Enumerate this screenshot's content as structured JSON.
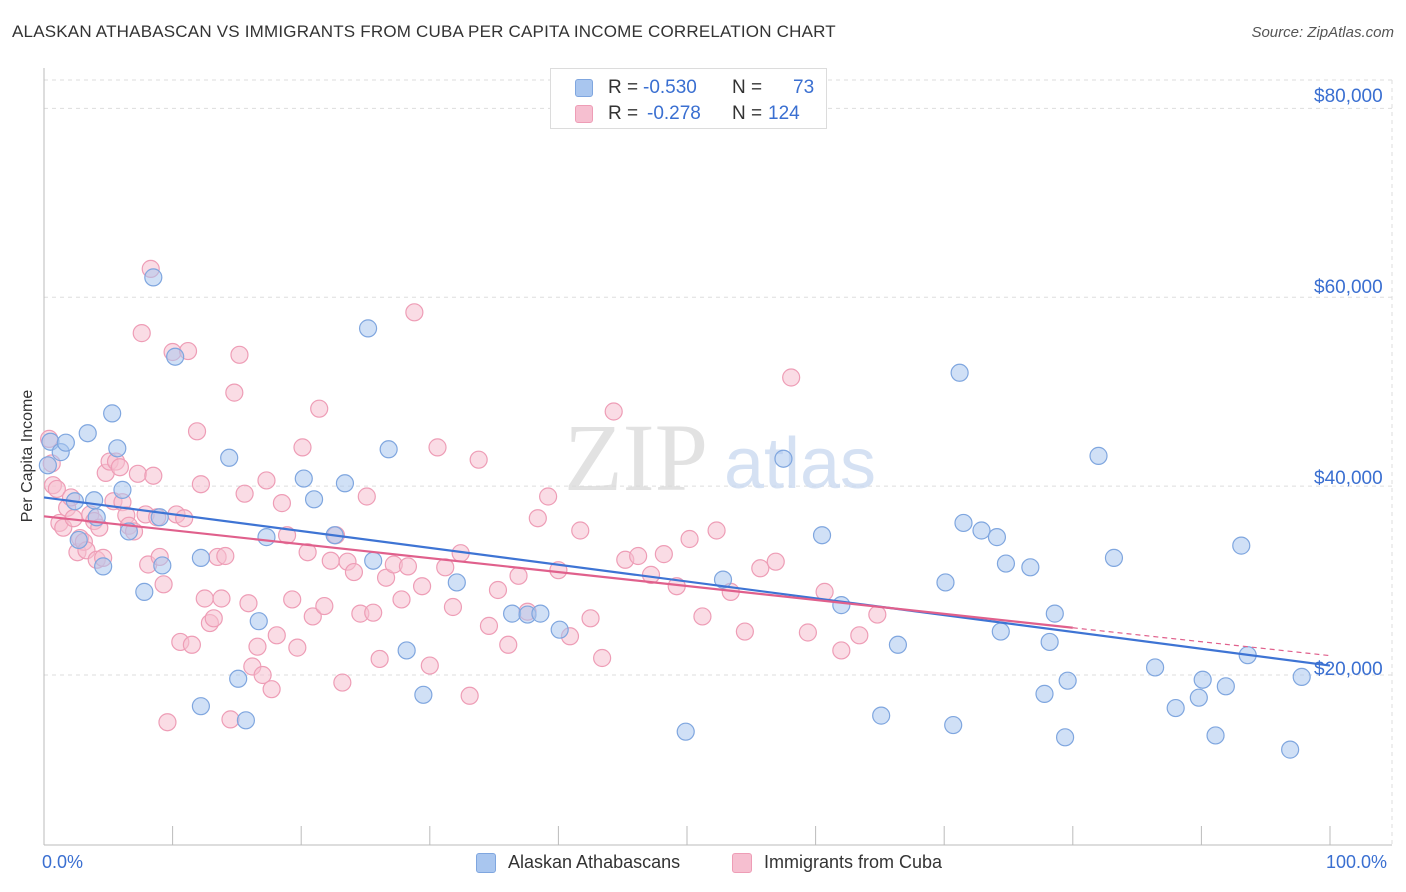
{
  "title": "ALASKAN ATHABASCAN VS IMMIGRANTS FROM CUBA PER CAPITA INCOME CORRELATION CHART",
  "source": "Source: ZipAtlas.com",
  "watermark": {
    "zip": "ZIP",
    "atlas": "atlas"
  },
  "colors": {
    "blue_fill": "#a9c6ef",
    "blue_stroke": "#7fa6df",
    "blue_line": "#3e74d4",
    "pink_fill": "#f6bfd0",
    "pink_stroke": "#ee9db6",
    "pink_line": "#e0608c",
    "grid": "#dddddd",
    "axis_text": "#3a6fd1"
  },
  "legend": {
    "rows": [
      {
        "r_label": "R =",
        "r_value": "-0.530",
        "n_label": "N =",
        "n_value": "73"
      },
      {
        "r_label": "R =",
        "r_value": "-0.278",
        "n_label": "N =",
        "n_value": "124"
      }
    ]
  },
  "bottom_legend": [
    "Alaskan Athabascans",
    "Immigrants from Cuba"
  ],
  "x_axis": {
    "min_label": "0.0%",
    "max_label": "100.0%"
  },
  "y_axis": {
    "label": "Per Capita Income",
    "ticks": [
      "$20,000",
      "$40,000",
      "$60,000",
      "$80,000"
    ]
  },
  "chart_data": {
    "type": "scatter",
    "xlabel": "",
    "ylabel": "Per Capita Income",
    "xlim": [
      0,
      100
    ],
    "ylim": [
      2000,
      83000
    ],
    "yticks": [
      20000,
      40000,
      60000,
      80000
    ],
    "grid": true,
    "legend_position": "top-center",
    "series": [
      {
        "name": "Alaskan Athabascans",
        "r": -0.53,
        "n": 73,
        "trend": {
          "x": [
            0,
            100
          ],
          "y": [
            38800,
            21000
          ]
        },
        "points": [
          [
            0.3,
            42200
          ],
          [
            0.5,
            44700
          ],
          [
            1.3,
            43600
          ],
          [
            1.7,
            44600
          ],
          [
            2.4,
            38400
          ],
          [
            2.7,
            34300
          ],
          [
            3.4,
            45600
          ],
          [
            3.9,
            38500
          ],
          [
            4.1,
            36700
          ],
          [
            4.6,
            31500
          ],
          [
            5.3,
            47700
          ],
          [
            5.7,
            44000
          ],
          [
            6.1,
            39600
          ],
          [
            6.6,
            35200
          ],
          [
            7.8,
            28800
          ],
          [
            8.5,
            62100
          ],
          [
            9.0,
            36700
          ],
          [
            9.2,
            31600
          ],
          [
            10.2,
            53700
          ],
          [
            12.2,
            16700
          ],
          [
            12.2,
            32400
          ],
          [
            14.4,
            43000
          ],
          [
            15.1,
            19600
          ],
          [
            15.7,
            15200
          ],
          [
            16.7,
            25700
          ],
          [
            17.3,
            34600
          ],
          [
            20.2,
            40800
          ],
          [
            21.0,
            38600
          ],
          [
            22.6,
            34800
          ],
          [
            23.4,
            40300
          ],
          [
            25.2,
            56700
          ],
          [
            25.6,
            32100
          ],
          [
            26.8,
            43900
          ],
          [
            28.2,
            22600
          ],
          [
            29.5,
            17900
          ],
          [
            32.1,
            29800
          ],
          [
            36.4,
            26500
          ],
          [
            37.6,
            26400
          ],
          [
            38.6,
            26500
          ],
          [
            40.1,
            24800
          ],
          [
            49.9,
            14000
          ],
          [
            52.8,
            30100
          ],
          [
            57.5,
            42900
          ],
          [
            60.5,
            34800
          ],
          [
            62.0,
            27400
          ],
          [
            65.1,
            15700
          ],
          [
            66.4,
            23200
          ],
          [
            70.1,
            29800
          ],
          [
            70.7,
            14700
          ],
          [
            71.2,
            52000
          ],
          [
            71.5,
            36100
          ],
          [
            72.9,
            35300
          ],
          [
            74.1,
            34600
          ],
          [
            74.4,
            24600
          ],
          [
            74.8,
            31800
          ],
          [
            76.7,
            31400
          ],
          [
            77.8,
            18000
          ],
          [
            78.2,
            23500
          ],
          [
            78.6,
            26500
          ],
          [
            79.4,
            13400
          ],
          [
            79.6,
            19400
          ],
          [
            82.0,
            43200
          ],
          [
            83.2,
            32400
          ],
          [
            86.4,
            20800
          ],
          [
            88.0,
            16500
          ],
          [
            89.8,
            17600
          ],
          [
            90.1,
            19500
          ],
          [
            91.1,
            13600
          ],
          [
            91.9,
            18800
          ],
          [
            93.1,
            33700
          ],
          [
            93.6,
            22100
          ],
          [
            96.9,
            12100
          ],
          [
            97.8,
            19800
          ]
        ]
      },
      {
        "name": "Immigrants from Cuba",
        "r": -0.278,
        "n": 124,
        "trend": {
          "x": [
            0,
            80
          ],
          "y": [
            36800,
            25000
          ]
        },
        "points": [
          [
            0.4,
            45000
          ],
          [
            0.6,
            42400
          ],
          [
            0.7,
            40100
          ],
          [
            1.0,
            39700
          ],
          [
            1.2,
            36100
          ],
          [
            1.5,
            35600
          ],
          [
            1.8,
            37700
          ],
          [
            2.1,
            38800
          ],
          [
            2.3,
            36600
          ],
          [
            2.6,
            33000
          ],
          [
            2.8,
            34500
          ],
          [
            3.1,
            34100
          ],
          [
            3.3,
            33200
          ],
          [
            3.6,
            37000
          ],
          [
            3.9,
            36300
          ],
          [
            4.1,
            32200
          ],
          [
            4.3,
            35600
          ],
          [
            4.6,
            32400
          ],
          [
            4.8,
            41400
          ],
          [
            5.1,
            42600
          ],
          [
            5.4,
            38400
          ],
          [
            5.6,
            42600
          ],
          [
            5.9,
            42000
          ],
          [
            6.1,
            38300
          ],
          [
            6.4,
            36900
          ],
          [
            6.6,
            35800
          ],
          [
            7.0,
            35200
          ],
          [
            7.3,
            41300
          ],
          [
            7.6,
            56200
          ],
          [
            7.9,
            37000
          ],
          [
            8.1,
            31700
          ],
          [
            8.3,
            63000
          ],
          [
            8.5,
            41100
          ],
          [
            8.8,
            36700
          ],
          [
            9.0,
            32500
          ],
          [
            9.3,
            29600
          ],
          [
            9.6,
            15000
          ],
          [
            10.0,
            54200
          ],
          [
            10.3,
            37000
          ],
          [
            10.6,
            23500
          ],
          [
            10.9,
            36600
          ],
          [
            11.2,
            54300
          ],
          [
            11.5,
            23200
          ],
          [
            11.9,
            45800
          ],
          [
            12.2,
            40200
          ],
          [
            12.5,
            28100
          ],
          [
            12.9,
            25500
          ],
          [
            13.2,
            26000
          ],
          [
            13.5,
            32500
          ],
          [
            13.8,
            28100
          ],
          [
            14.1,
            32600
          ],
          [
            14.5,
            15300
          ],
          [
            14.8,
            49900
          ],
          [
            15.2,
            53900
          ],
          [
            15.6,
            39200
          ],
          [
            15.9,
            27600
          ],
          [
            16.2,
            20900
          ],
          [
            16.6,
            23000
          ],
          [
            17.0,
            20000
          ],
          [
            17.3,
            40600
          ],
          [
            17.7,
            18500
          ],
          [
            18.1,
            24200
          ],
          [
            18.5,
            38200
          ],
          [
            18.9,
            34800
          ],
          [
            19.3,
            28000
          ],
          [
            19.7,
            22900
          ],
          [
            20.1,
            44100
          ],
          [
            20.5,
            33000
          ],
          [
            20.9,
            26200
          ],
          [
            21.4,
            48200
          ],
          [
            21.8,
            27300
          ],
          [
            22.3,
            32100
          ],
          [
            22.7,
            34800
          ],
          [
            23.2,
            19200
          ],
          [
            23.6,
            32000
          ],
          [
            24.1,
            30900
          ],
          [
            24.6,
            26500
          ],
          [
            25.1,
            38900
          ],
          [
            25.6,
            26600
          ],
          [
            26.1,
            21700
          ],
          [
            26.6,
            30300
          ],
          [
            27.2,
            31700
          ],
          [
            27.8,
            28000
          ],
          [
            28.3,
            31500
          ],
          [
            28.8,
            58400
          ],
          [
            29.4,
            29400
          ],
          [
            30.0,
            21000
          ],
          [
            30.6,
            44100
          ],
          [
            31.2,
            31400
          ],
          [
            31.8,
            27200
          ],
          [
            32.4,
            32900
          ],
          [
            33.1,
            17800
          ],
          [
            33.8,
            42800
          ],
          [
            34.6,
            25200
          ],
          [
            35.3,
            29000
          ],
          [
            36.1,
            23200
          ],
          [
            36.9,
            30500
          ],
          [
            37.6,
            26700
          ],
          [
            38.4,
            36600
          ],
          [
            39.2,
            38900
          ],
          [
            40.0,
            31100
          ],
          [
            40.9,
            24100
          ],
          [
            41.7,
            35300
          ],
          [
            42.5,
            26000
          ],
          [
            43.4,
            21800
          ],
          [
            44.3,
            47900
          ],
          [
            45.2,
            32200
          ],
          [
            46.2,
            32600
          ],
          [
            47.2,
            30600
          ],
          [
            48.2,
            32800
          ],
          [
            49.2,
            29400
          ],
          [
            50.2,
            34400
          ],
          [
            51.2,
            26200
          ],
          [
            52.3,
            35300
          ],
          [
            53.4,
            28800
          ],
          [
            54.5,
            24600
          ],
          [
            55.7,
            31300
          ],
          [
            56.9,
            32000
          ],
          [
            58.1,
            51500
          ],
          [
            59.4,
            24500
          ],
          [
            60.7,
            28800
          ],
          [
            62.0,
            22600
          ],
          [
            63.4,
            24200
          ],
          [
            64.8,
            26400
          ]
        ]
      }
    ]
  }
}
